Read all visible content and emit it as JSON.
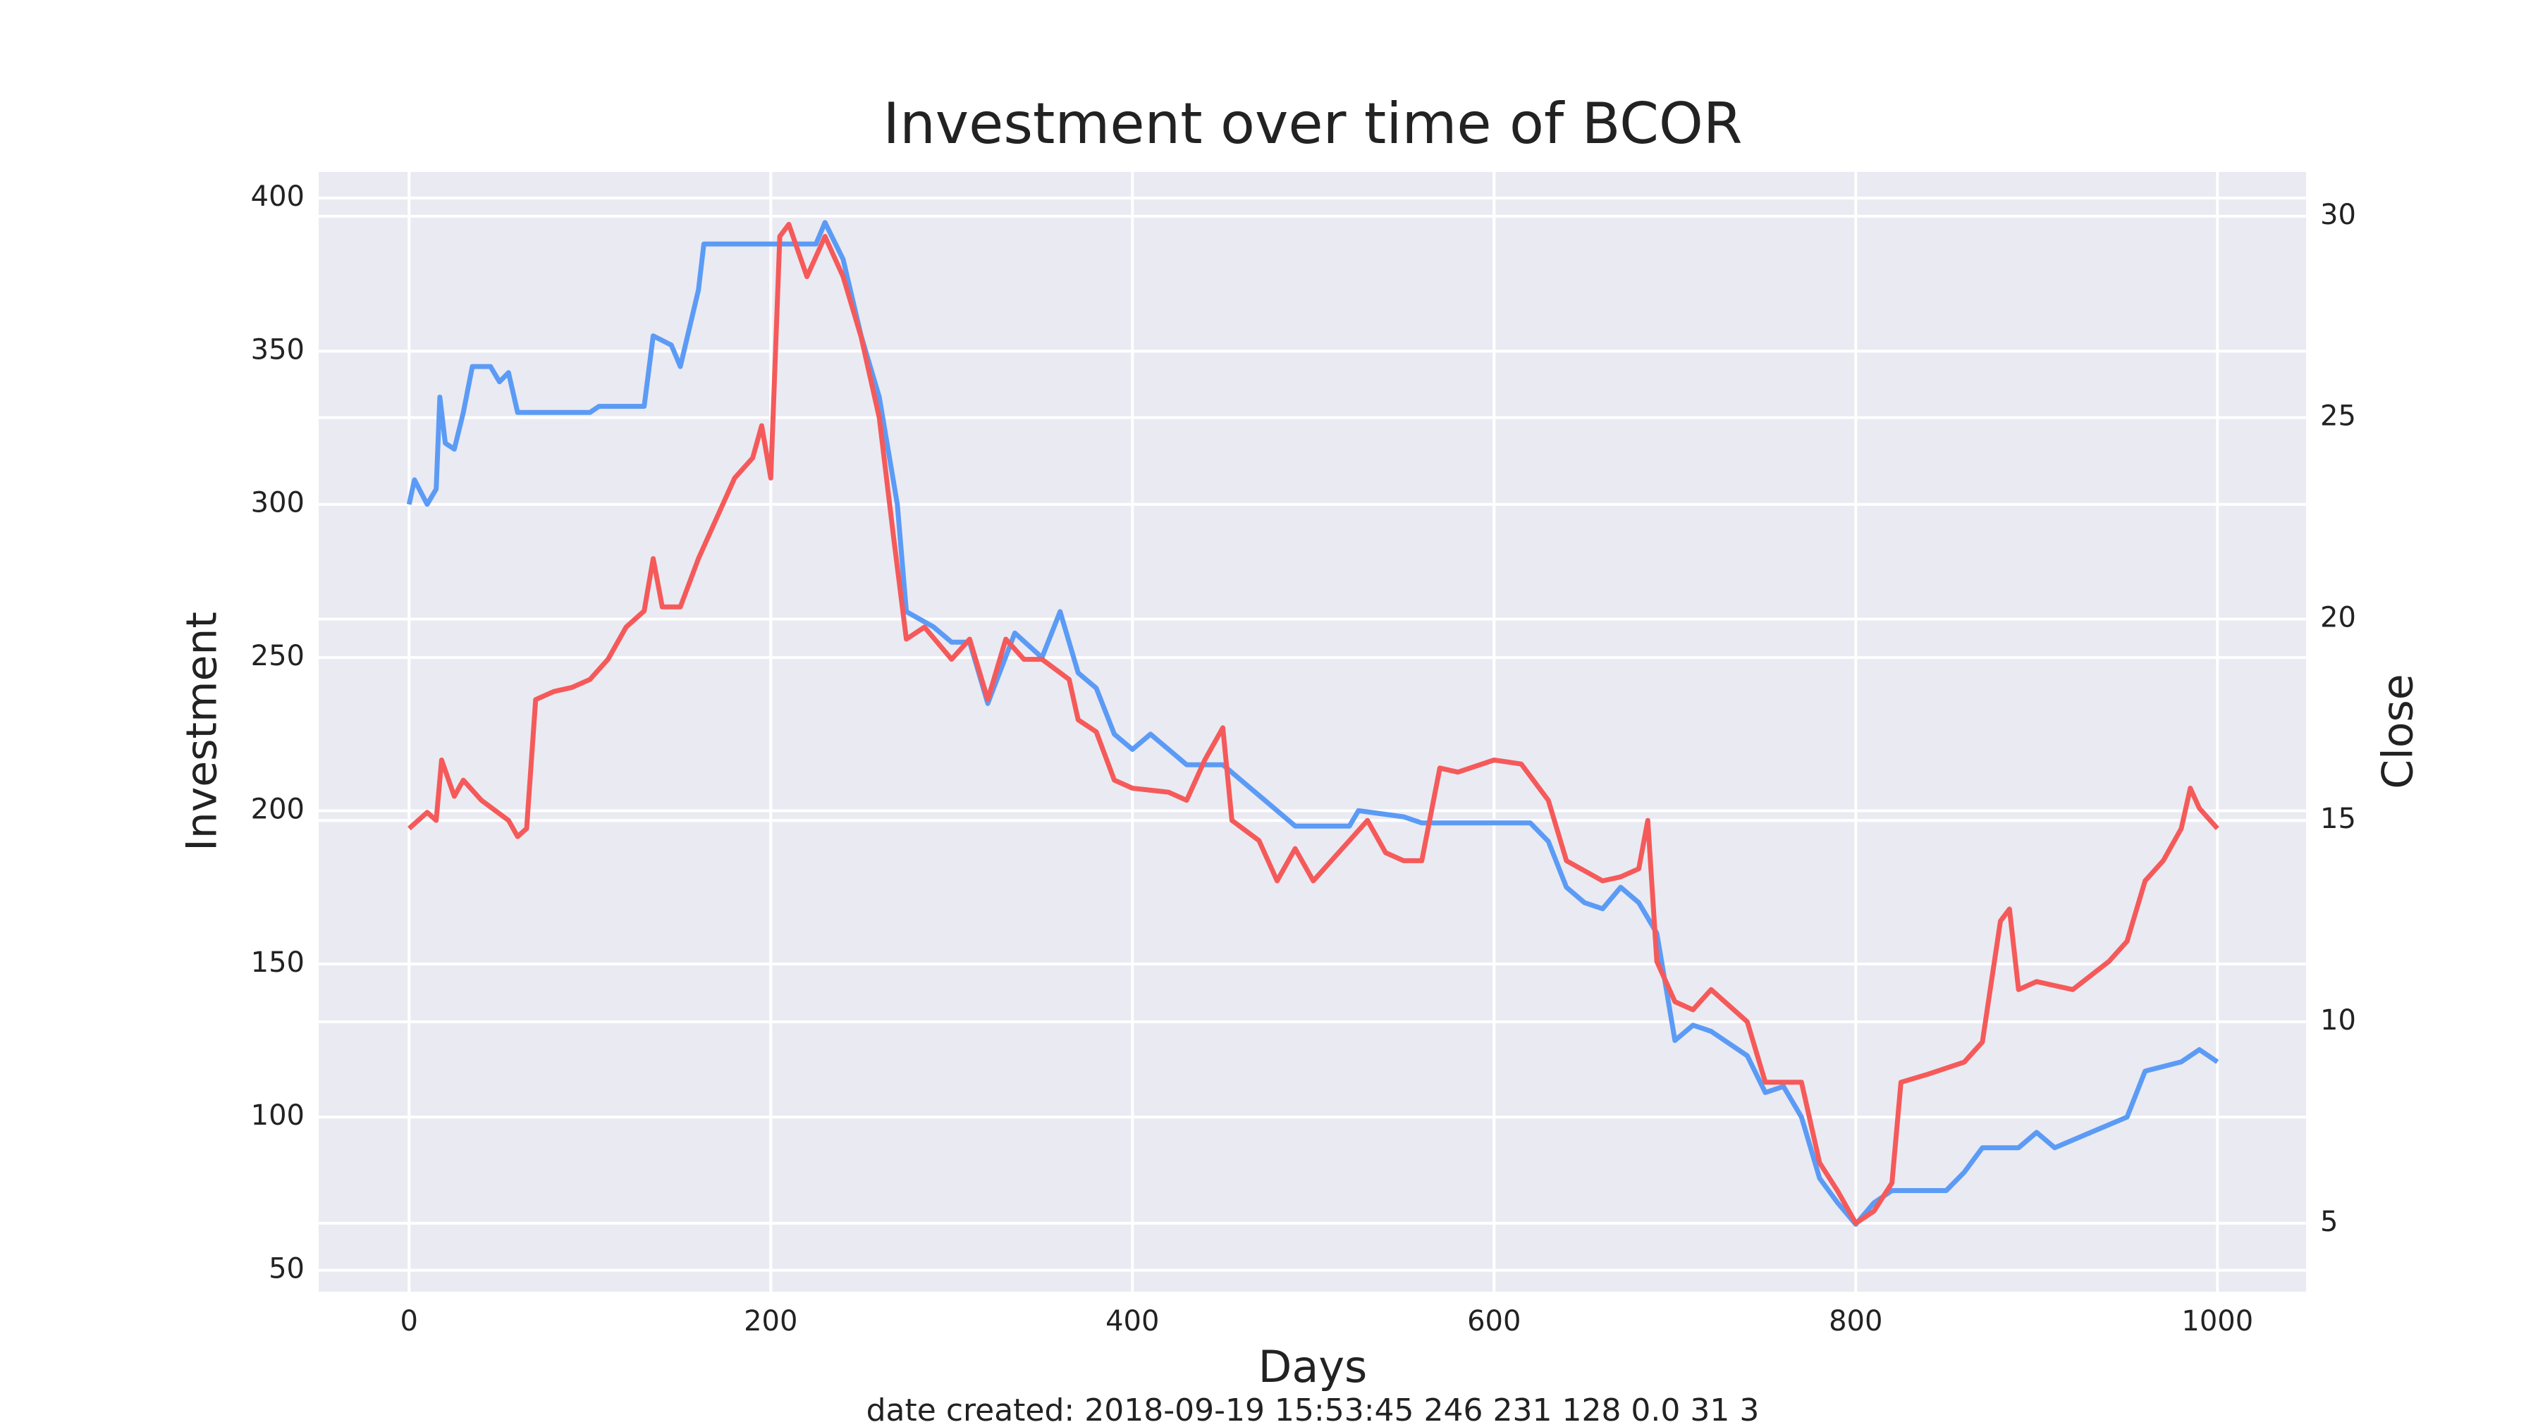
{
  "chart_data": {
    "type": "line",
    "title": "Investment over time of BCOR",
    "x_label": "Days",
    "footnote": "date created: 2018-09-19 15:53:45 246 231 128 0.0 31 3",
    "xlim": [
      -50,
      1049
    ],
    "xticks": [
      0,
      200,
      400,
      600,
      800,
      1000
    ],
    "ylim": [
      43,
      408.5
    ],
    "yticks": [
      50,
      100,
      150,
      200,
      250,
      300,
      350,
      400
    ],
    "y2lim": [
      3.3,
      31.1
    ],
    "y2ticks": [
      5,
      10,
      15,
      20,
      25,
      30
    ],
    "grid": true,
    "background": "#eaeaf2",
    "series": [
      {
        "name": "Investment",
        "color": "#5b9bf5",
        "x": [
          0,
          3,
          10,
          15,
          17,
          20,
          25,
          30,
          35,
          45,
          50,
          55,
          60,
          100,
          105,
          130,
          135,
          145,
          150,
          160,
          163,
          200,
          225,
          230,
          240,
          250,
          260,
          270,
          275,
          290,
          300,
          310,
          320,
          335,
          350,
          360,
          370,
          380,
          390,
          400,
          410,
          420,
          430,
          450,
          460,
          470,
          480,
          490,
          520,
          525,
          550,
          560,
          620,
          630,
          640,
          650,
          660,
          670,
          680,
          690,
          700,
          710,
          720,
          740,
          750,
          760,
          770,
          780,
          790,
          800,
          810,
          820,
          850,
          860,
          870,
          890,
          900,
          910,
          930,
          950,
          960,
          980,
          990,
          1000
        ],
        "values": [
          300,
          308,
          300,
          305,
          335,
          320,
          318,
          330,
          345,
          345,
          340,
          343,
          330,
          330,
          332,
          332,
          355,
          352,
          345,
          370,
          385,
          385,
          385,
          392,
          380,
          355,
          335,
          300,
          265,
          260,
          255,
          255,
          235,
          258,
          250,
          265,
          245,
          240,
          225,
          220,
          225,
          220,
          215,
          215,
          210,
          205,
          200,
          195,
          195,
          200,
          198,
          196,
          196,
          190,
          175,
          170,
          168,
          175,
          170,
          160,
          125,
          130,
          128,
          120,
          108,
          110,
          100,
          80,
          72,
          65,
          72,
          76,
          76,
          82,
          90,
          90,
          95,
          90,
          95,
          100,
          115,
          118,
          122,
          118
        ]
      },
      {
        "name": "Close",
        "color": "#f55a5a",
        "axis": "y2",
        "x": [
          0,
          10,
          15,
          18,
          25,
          30,
          40,
          55,
          60,
          65,
          70,
          80,
          90,
          100,
          110,
          120,
          130,
          135,
          140,
          150,
          160,
          170,
          180,
          190,
          195,
          200,
          205,
          210,
          220,
          230,
          240,
          250,
          260,
          268,
          275,
          285,
          300,
          310,
          320,
          330,
          340,
          350,
          365,
          370,
          380,
          390,
          400,
          420,
          430,
          440,
          450,
          455,
          470,
          480,
          490,
          500,
          510,
          520,
          530,
          540,
          550,
          560,
          570,
          580,
          600,
          615,
          630,
          640,
          660,
          670,
          680,
          685,
          690,
          700,
          710,
          720,
          740,
          750,
          770,
          780,
          790,
          800,
          810,
          820,
          825,
          840,
          860,
          870,
          880,
          885,
          890,
          900,
          920,
          940,
          950,
          960,
          970,
          980,
          985,
          990,
          1000
        ],
        "values": [
          14.8,
          15.2,
          15,
          16.5,
          15.6,
          16,
          15.5,
          15,
          14.6,
          14.8,
          18,
          18.2,
          18.3,
          18.5,
          19,
          19.8,
          20.2,
          21.5,
          20.3,
          20.3,
          21.5,
          22.5,
          23.5,
          24,
          24.8,
          23.5,
          29.5,
          29.8,
          28.5,
          29.5,
          28.5,
          27,
          25,
          22,
          19.5,
          19.8,
          19,
          19.5,
          18,
          19.5,
          19,
          19,
          18.5,
          17.5,
          17.2,
          16,
          15.8,
          15.7,
          15.5,
          16.5,
          17.3,
          15,
          14.5,
          13.5,
          14.3,
          13.5,
          14,
          14.5,
          15,
          14.2,
          14,
          14,
          16.3,
          16.2,
          16.5,
          16.4,
          15.5,
          14,
          13.5,
          13.6,
          13.8,
          15,
          11.5,
          10.5,
          10.3,
          10.8,
          10,
          8.5,
          8.5,
          6.5,
          5.8,
          5,
          5.3,
          6,
          8.5,
          8.7,
          9,
          9.5,
          12.5,
          12.8,
          10.8,
          11,
          10.8,
          11.5,
          12,
          13.5,
          14,
          14.8,
          15.8,
          15.3,
          14.8
        ]
      }
    ]
  }
}
